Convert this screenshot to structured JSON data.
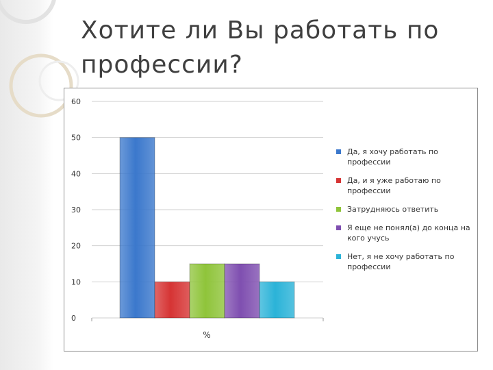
{
  "slide": {
    "title_line1": "Хотите ли Вы работать по",
    "title_line2": "профессии?"
  },
  "colors": {
    "title": "#3f3f3f",
    "grid": "#cfcfcf",
    "axis_text": "#333333"
  },
  "chart_data": {
    "type": "bar",
    "xlabel": "%",
    "ylim": [
      0,
      60
    ],
    "yticks": [
      0,
      10,
      20,
      30,
      40,
      50,
      60
    ],
    "grid": true,
    "legend_position": "right",
    "series": [
      {
        "name": "Да, я хочу работать по профессии",
        "value": 50,
        "color": "#3b78cc"
      },
      {
        "name": "Да, и я уже работаю по профессии",
        "value": 10,
        "color": "#d63434"
      },
      {
        "name": "Затрудняюсь ответить",
        "value": 15,
        "color": "#8fc43a"
      },
      {
        "name": "Я еще не понял(а) до конца на кого учусь",
        "value": 15,
        "color": "#7f4fb0"
      },
      {
        "name": "Нет, я не хочу работать по профессии",
        "value": 10,
        "color": "#2bb3d8"
      }
    ]
  }
}
